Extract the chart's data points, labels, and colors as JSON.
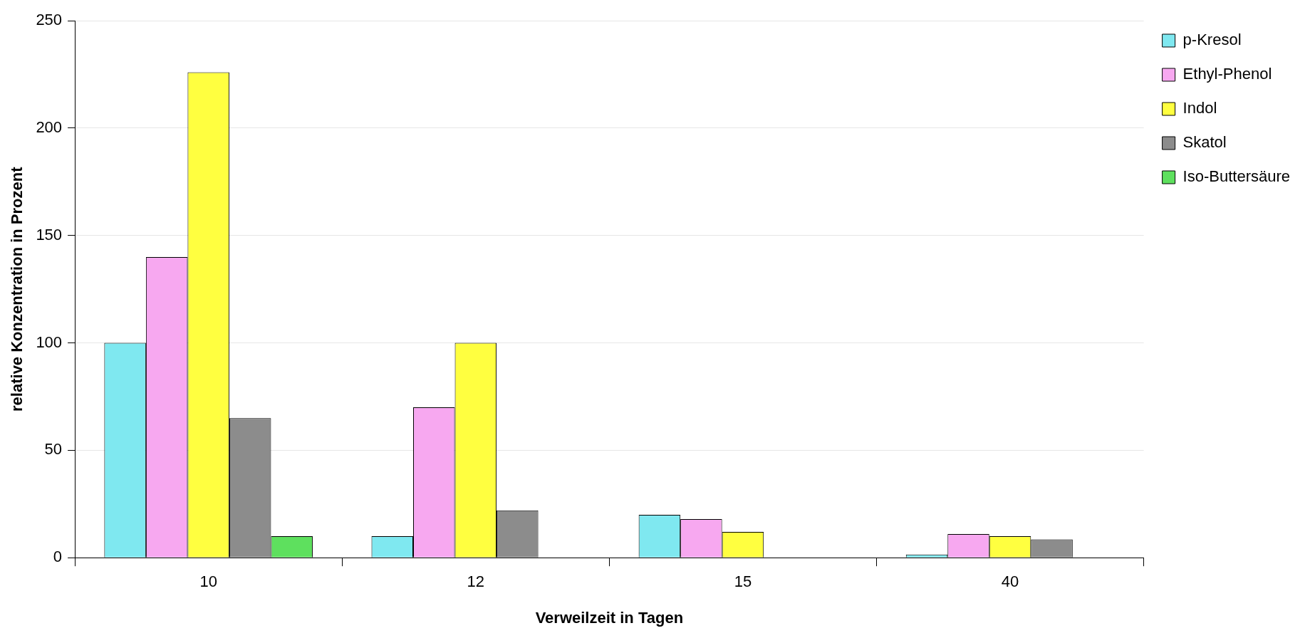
{
  "chart_data": {
    "type": "bar",
    "xlabel": "Verweilzeit in Tagen",
    "ylabel": "relative Konzentration in Prozent",
    "categories": [
      "10",
      "12",
      "15",
      "40"
    ],
    "series": [
      {
        "name": "p-Kresol",
        "color": "#7fe8f0",
        "values": [
          100,
          10,
          20,
          1.5
        ]
      },
      {
        "name": "Ethyl-Phenol",
        "color": "#f7a8f0",
        "values": [
          140,
          70,
          18,
          11
        ]
      },
      {
        "name": "Indol",
        "color": "#ffff40",
        "values": [
          226,
          100,
          12,
          10
        ]
      },
      {
        "name": "Skatol",
        "color": "#8c8c8c",
        "values": [
          65,
          22,
          null,
          8.5
        ]
      },
      {
        "name": "Iso-Buttersäure",
        "color": "#5ee05e",
        "values": [
          10,
          null,
          null,
          null
        ]
      }
    ],
    "ylim": [
      0,
      250
    ],
    "yticks": [
      0,
      50,
      100,
      150,
      200,
      250
    ],
    "grid": "y",
    "legend": "top right"
  }
}
